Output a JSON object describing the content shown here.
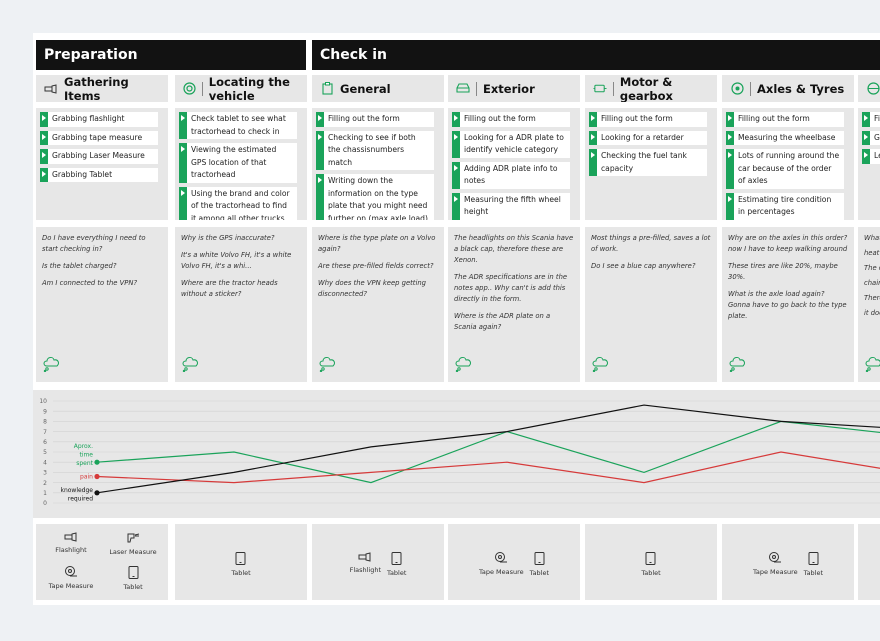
{
  "phases": [
    {
      "label": "Preparation"
    },
    {
      "label": "Check in"
    }
  ],
  "columns": [
    {
      "title": "Gathering Items",
      "icon": "flashlight-icon",
      "tasks": [
        "Grabbing flashlight",
        "Grabbing tape measure",
        "Grabbing Laser Measure",
        "Grabbing Tablet"
      ],
      "notes": [
        "Do I have everything I need to start checking in?",
        "Is the tablet charged?",
        "Am I connected to the VPN?"
      ],
      "tools": [
        "Flashlight",
        "Laser Measure",
        "Tape Measure",
        "Tablet"
      ]
    },
    {
      "title": "Locating the vehicle",
      "icon": "target-icon",
      "tasks": [
        "Check tablet to see what tractorhead to check in",
        "Viewing the estimated GPS location of that tractorhead",
        "Using the brand and color of the tractorhead to find it among all other trucks"
      ],
      "notes": [
        "Why is the GPS inaccurate?",
        "It's a white Volvo FH, it's a white Volvo FH, it's a whi...",
        "Where are the tractor heads without a sticker?"
      ],
      "tools": [
        "Tablet"
      ]
    },
    {
      "title": "General",
      "icon": "clipboard-icon",
      "tasks": [
        "Filling out the form",
        "Checking to see if both the chassisnumbers match",
        "Writing down the information on the type plate that you might need further on (max axle load)"
      ],
      "notes": [
        "Where is the type plate on a Volvo again?",
        "Are these pre-filled fields correct?",
        "Why does the VPN keep getting disconnected?"
      ],
      "tools": [
        "Flashlight",
        "Tablet"
      ]
    },
    {
      "title": "Exterior",
      "icon": "truck-icon",
      "tasks": [
        "Filling out the form",
        "Looking for a ADR plate to identify vehicle category",
        "Adding ADR plate info to notes",
        "Measuring the fifth wheel height"
      ],
      "notes": [
        "The headlights on this Scania have a black cap, therefore these are Xenon.",
        "The ADR specifications are in the notes app.. Why can't is add this directly in the form.",
        "Where is the ADR plate on a Scania again?"
      ],
      "tools": [
        "Tape Measure",
        "Tablet"
      ]
    },
    {
      "title": "Motor & gearbox",
      "icon": "engine-icon",
      "tasks": [
        "Filling out the form",
        "Looking for a retarder",
        "Checking the fuel tank capacity"
      ],
      "notes": [
        "Most things a pre-filled, saves a lot of work.",
        "Do I see a blue cap anywhere?"
      ],
      "tools": [
        "Tablet"
      ]
    },
    {
      "title": "Axles & Tyres",
      "icon": "tyre-icon",
      "tasks": [
        "Filling out the form",
        "Measuring the wheelbase",
        "Lots of running around the car because of the order of axles",
        "Estimating tire condition in percentages"
      ],
      "notes": [
        "Why are on the axles in this order? now I have to keep walking around",
        "These tires are like 20%, maybe 30%.",
        "What is the axle load again? Gonna have to go back to the type plate."
      ],
      "tools": [
        "Tape Measure",
        "Tablet"
      ]
    },
    {
      "title": "",
      "icon": "steering-icon",
      "tasks": [
        "Fi",
        "G",
        "Le"
      ],
      "notes": [
        "What",
        "heat",
        "The c",
        "chair",
        "There",
        "it doe"
      ],
      "tools": []
    }
  ],
  "chart_data": {
    "type": "line",
    "categories": [
      "Gathering Items",
      "Locating the vehicle",
      "General",
      "Exterior",
      "Motor & gearbox",
      "Axles & Tyres",
      ""
    ],
    "ylim": [
      0,
      10
    ],
    "yticks": [
      "0",
      "1",
      "2",
      "3",
      "4",
      "5",
      "6",
      "7",
      "8",
      "9",
      "10"
    ],
    "series": [
      {
        "name": "Aprox. time spent",
        "color": "#1aa35a",
        "values": [
          4,
          5,
          2,
          7,
          3,
          8,
          6.5
        ]
      },
      {
        "name": "pain",
        "color": "#d63a3a",
        "values": [
          2.6,
          2,
          3,
          4,
          2,
          5,
          2.8
        ]
      },
      {
        "name": "knowledge required",
        "color": "#111111",
        "values": [
          1,
          3,
          5.5,
          7,
          9.6,
          8,
          7.2
        ]
      }
    ],
    "series_labels": {
      "time": [
        "Aprox.",
        "time",
        "spent"
      ],
      "pain": "pain",
      "knowledge": [
        "knowledge",
        "required"
      ]
    }
  }
}
